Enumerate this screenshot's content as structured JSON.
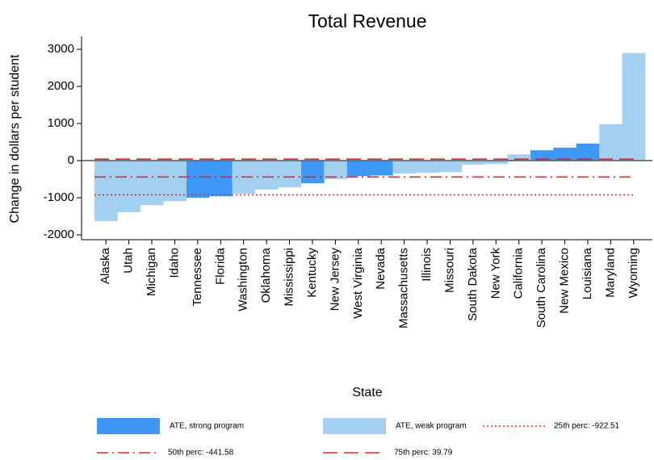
{
  "chart_data": {
    "type": "bar",
    "title": "Total Revenue",
    "x_label": "State",
    "y_label": "Change in dollars per student",
    "categories": [
      "Alaska",
      "Utah",
      "Michigan",
      "Idaho",
      "Tennessee",
      "Florida",
      "Washington",
      "Oklahoma",
      "Mississippi",
      "Kentucky",
      "New Jersey",
      "West Virginia",
      "Nevada",
      "Massachusetts",
      "Illinois",
      "Missouri",
      "South Dakota",
      "New York",
      "California",
      "South Carolina",
      "New Mexico",
      "Louisiana",
      "Maryland",
      "Wyoming"
    ],
    "series": [
      {
        "name": "ATE, strong program",
        "color": "#3d98f7",
        "values": [
          null,
          null,
          null,
          null,
          -1000,
          -960,
          null,
          null,
          null,
          -610,
          null,
          -420,
          -400,
          null,
          null,
          null,
          null,
          null,
          null,
          280,
          350,
          460,
          null,
          null
        ]
      },
      {
        "name": "ATE, weak program",
        "color": "#a3d0f0",
        "values": [
          -1630,
          -1390,
          -1200,
          -1090,
          null,
          null,
          -890,
          -780,
          -720,
          null,
          -500,
          null,
          null,
          -350,
          -330,
          -310,
          -110,
          -90,
          170,
          null,
          null,
          null,
          980,
          2900
        ]
      }
    ],
    "lines": [
      {
        "name": "25th perc: -922.51",
        "value": -922.51,
        "style": "dotted",
        "color": "#e8262b"
      },
      {
        "name": "50th perc: -441.58",
        "value": -441.58,
        "style": "dashdot",
        "color": "#e8262b"
      },
      {
        "name": "75th perc: 39.79",
        "value": 39.79,
        "style": "dashed",
        "color": "#e8262b"
      }
    ],
    "ylim": [
      -2130,
      3350
    ],
    "yticks": [
      -2000,
      -1000,
      0,
      1000,
      2000,
      3000
    ]
  }
}
